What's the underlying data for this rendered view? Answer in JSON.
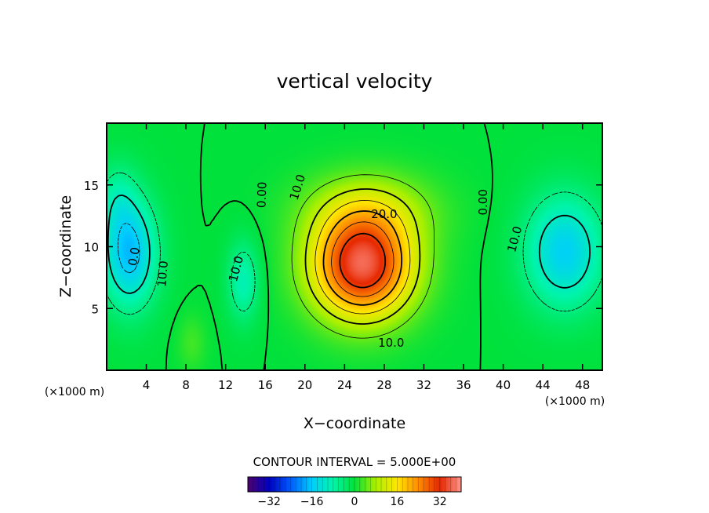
{
  "chart_data": {
    "type": "contour",
    "title": "vertical velocity",
    "xlabel": "X−coordinate",
    "ylabel": "Z−coordinate",
    "x_unit_left": "(×1000 m)",
    "x_unit_right": "(×1000 m)",
    "xlim": [
      0,
      50
    ],
    "ylim": [
      0,
      20
    ],
    "xticks": [
      4,
      8,
      12,
      16,
      20,
      24,
      28,
      32,
      36,
      40,
      44,
      48
    ],
    "yticks": [
      5,
      10,
      15
    ],
    "contour_interval_text": "CONTOUR INTERVAL = 5.000E+00",
    "contour_labels": [
      {
        "text": "0.00",
        "x": 15.7,
        "y": 14.2,
        "angle": -88
      },
      {
        "text": "10.0",
        "x": 19.3,
        "y": 14.8,
        "angle": -72
      },
      {
        "text": "20.0",
        "x": 28.0,
        "y": 12.6,
        "angle": 0
      },
      {
        "text": "10.0",
        "x": 28.7,
        "y": 2.2,
        "angle": 0
      },
      {
        "text": "0.00",
        "x": 38.0,
        "y": 13.6,
        "angle": -90
      },
      {
        "text": "10.0",
        "x": 41.2,
        "y": 10.6,
        "angle": -75
      },
      {
        "text": "10.0",
        "x": 13.1,
        "y": 8.2,
        "angle": -75
      },
      {
        "text": "10.0",
        "x": 5.7,
        "y": 7.8,
        "angle": -85
      },
      {
        "text": "0.0",
        "x": 2.8,
        "y": 9.2,
        "angle": -80
      }
    ],
    "colorbar": {
      "ticks": [
        "−32",
        "−16",
        "0",
        "16",
        "32"
      ],
      "tick_values": [
        -32,
        -16,
        0,
        16,
        32
      ],
      "range": [
        -40,
        40
      ]
    },
    "field_sources": [
      {
        "x": 25.8,
        "y": 8.5,
        "amp": 36,
        "sx": 5.0,
        "sz": 4.2
      },
      {
        "x": 26.5,
        "y": 13.0,
        "amp": 8,
        "sx": 6.5,
        "sz": 3.0
      },
      {
        "x": 2.3,
        "y": 9.5,
        "amp": -17,
        "sx": 2.8,
        "sz": 4.5
      },
      {
        "x": 1.0,
        "y": 14.0,
        "amp": -5,
        "sx": 2.0,
        "sz": 3.0
      },
      {
        "x": 46.2,
        "y": 9.6,
        "amp": -15,
        "sx": 4.0,
        "sz": 4.6
      },
      {
        "x": 13.8,
        "y": 7.2,
        "amp": -9,
        "sx": 1.6,
        "sz": 3.2
      },
      {
        "x": 8.6,
        "y": 2.2,
        "amp": 3,
        "sx": 1.4,
        "sz": 2.2
      }
    ]
  }
}
